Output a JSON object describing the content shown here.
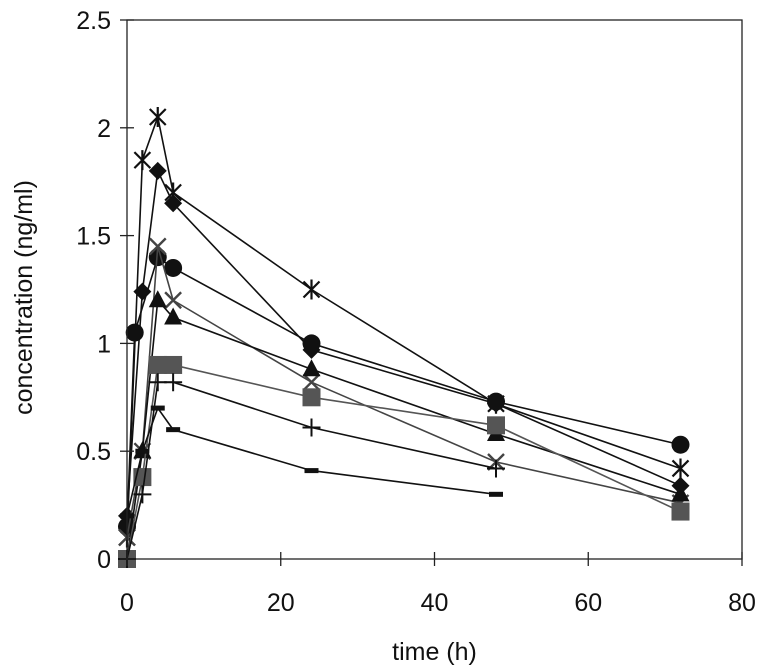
{
  "chart_data": {
    "type": "line",
    "title": "",
    "xlabel": "time (h)",
    "ylabel": "concentration (ng/ml)",
    "xlim": [
      0,
      80
    ],
    "ylim": [
      0,
      2.5
    ],
    "x_ticks": [
      0,
      20,
      40,
      60,
      80
    ],
    "x_tick_labels": [
      "0",
      "20",
      "40",
      "60",
      "80"
    ],
    "y_ticks": [
      0,
      0.5,
      1,
      1.5,
      2,
      2.5
    ],
    "y_tick_labels": [
      "0",
      "0.5",
      "1",
      "1.5",
      "2",
      "2.5"
    ],
    "grid": false,
    "legend": "none",
    "series": [
      {
        "name": "star-series",
        "marker": "star",
        "color": "#111111",
        "x": [
          0,
          2,
          4,
          6,
          24,
          48,
          72
        ],
        "y": [
          0.1,
          1.85,
          2.05,
          1.7,
          1.25,
          0.72,
          0.42
        ]
      },
      {
        "name": "diamond-series",
        "marker": "diamond",
        "color": "#111111",
        "x": [
          0,
          2,
          4,
          6,
          24,
          48,
          72
        ],
        "y": [
          0.2,
          1.24,
          1.8,
          1.65,
          0.97,
          0.72,
          0.34
        ]
      },
      {
        "name": "circle-series",
        "marker": "circle",
        "color": "#111111",
        "x": [
          0,
          1,
          4,
          6,
          24,
          48,
          72
        ],
        "y": [
          0.15,
          1.05,
          1.4,
          1.35,
          1.0,
          0.73,
          0.53
        ]
      },
      {
        "name": "x-series",
        "marker": "x",
        "color": "#444444",
        "x": [
          0,
          2,
          4,
          6,
          24,
          48,
          72
        ],
        "y": [
          0.1,
          0.5,
          1.45,
          1.2,
          0.82,
          0.45,
          0.26
        ]
      },
      {
        "name": "triangle-series",
        "marker": "triangle",
        "color": "#111111",
        "x": [
          0,
          2,
          4,
          6,
          24,
          48,
          72
        ],
        "y": [
          0.0,
          0.5,
          1.2,
          1.12,
          0.88,
          0.58,
          0.3
        ]
      },
      {
        "name": "square-series",
        "marker": "square",
        "color": "#555555",
        "x": [
          0,
          2,
          4,
          6,
          24,
          48,
          72
        ],
        "y": [
          0.0,
          0.38,
          0.9,
          0.9,
          0.75,
          0.62,
          0.22
        ]
      },
      {
        "name": "plus-series",
        "marker": "plus",
        "color": "#111111",
        "x": [
          0,
          2,
          4,
          6,
          24,
          48
        ],
        "y": [
          0.0,
          0.3,
          0.82,
          0.82,
          0.61,
          0.42
        ]
      },
      {
        "name": "dash-series",
        "marker": "dash",
        "color": "#111111",
        "x": [
          0,
          2,
          4,
          6,
          24,
          48
        ],
        "y": [
          0.2,
          0.5,
          0.7,
          0.6,
          0.41,
          0.3
        ]
      }
    ]
  }
}
